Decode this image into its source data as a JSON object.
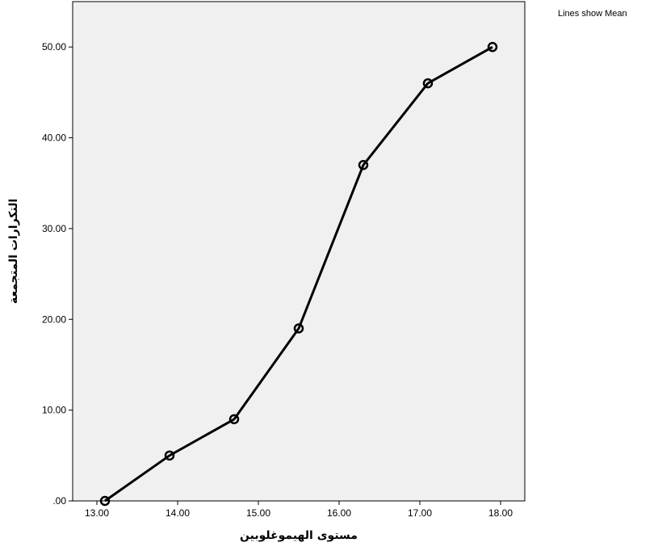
{
  "chart_data": {
    "type": "line",
    "xlabel": "مستوى الهيموغلوبين",
    "ylabel": "التكرارات المتجمعة",
    "note": "Lines show Mean",
    "xlim": [
      12.7,
      18.3
    ],
    "ylim": [
      0,
      55
    ],
    "xticks": [
      13,
      14,
      15,
      16,
      17,
      18
    ],
    "xtick_labels": [
      "13.00",
      "14.00",
      "15.00",
      "16.00",
      "17.00",
      "18.00"
    ],
    "yticks": [
      0,
      10,
      20,
      30,
      40,
      50
    ],
    "ytick_labels": [
      ".00",
      "10.00",
      "20.00",
      "30.00",
      "40.00",
      "50.00"
    ],
    "grid": false,
    "series": [
      {
        "x": [
          13.1,
          13.9,
          14.7,
          15.5,
          16.3,
          17.1,
          17.9
        ],
        "y": [
          0,
          5,
          9,
          19,
          37,
          46,
          50
        ]
      }
    ],
    "colors": {
      "plot_background": "#f0f0f0",
      "line": "#000000"
    }
  }
}
